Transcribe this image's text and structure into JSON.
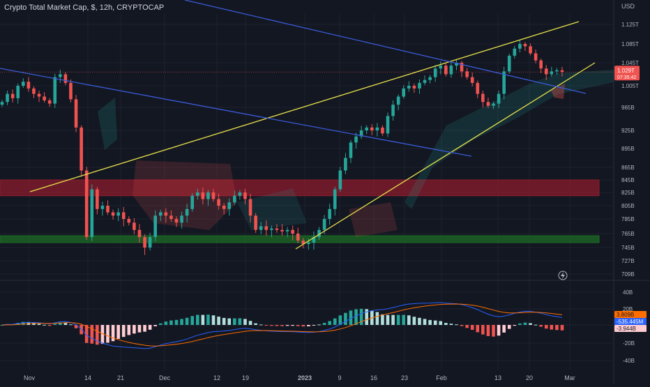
{
  "header": {
    "title": "Crypto Total Market Cap, $, 12h, CRYPTOCAP"
  },
  "price_axis": {
    "unit_label": "USD",
    "ticks": [
      "1.125T",
      "1.085T",
      "1.045T",
      "1.005T",
      "965B",
      "925B",
      "895B",
      "865B",
      "845B",
      "825B",
      "805B",
      "785B",
      "765B",
      "745B",
      "727B",
      "709B"
    ],
    "last_price": "1.029T",
    "countdown": "07:35:42"
  },
  "macd_axis": {
    "ticks": [
      "40B",
      "20B",
      "-20B",
      "-40B"
    ],
    "badges": [
      "3.809B",
      "-535.445M",
      "-3.944B"
    ]
  },
  "time_axis": {
    "labels": [
      "Nov",
      "14",
      "21",
      "Dec",
      "12",
      "19",
      "2023",
      "9",
      "16",
      "23",
      "Feb",
      "13",
      "20",
      "Mar"
    ]
  },
  "colors": {
    "background": "#131722",
    "up_candle": "#26a69a",
    "down_candle": "#f05350",
    "trendline_yellow": "#e8e24a",
    "trendline_blue": "#3a5bd9",
    "resistance_zone": "#8b1c2c",
    "support_zone": "#1e6b25",
    "macd_line": "#2962ff",
    "signal_line": "#ff6d00"
  },
  "icons": {
    "flash": "lightning-bolt-icon"
  },
  "chart_data": [
    {
      "type": "candlestick",
      "title": "Crypto Total Market Cap, $, 12h, CRYPTOCAP",
      "ylabel": "USD",
      "ylim": [
        "709B",
        "1.125T"
      ],
      "x_range": [
        "2022-10-25",
        "2023-03-01"
      ],
      "closes_usd_billion": [
        975,
        990,
        982,
        1005,
        1012,
        1000,
        990,
        985,
        978,
        972,
        1020,
        1025,
        1010,
        980,
        930,
        860,
        760,
        830,
        800,
        805,
        795,
        790,
        795,
        785,
        780,
        770,
        760,
        745,
        760,
        790,
        795,
        790,
        785,
        780,
        790,
        800,
        820,
        825,
        815,
        825,
        815,
        805,
        800,
        810,
        820,
        825,
        815,
        790,
        770,
        775,
        770,
        772,
        770,
        768,
        770,
        765,
        755,
        750,
        752,
        760,
        770,
        785,
        800,
        830,
        860,
        880,
        905,
        915,
        925,
        930,
        925,
        930,
        920,
        950,
        970,
        985,
        1000,
        1005,
        1000,
        1010,
        1015,
        1020,
        1035,
        1040,
        1025,
        1040,
        1045,
        1030,
        1020,
        1010,
        990,
        975,
        968,
        972,
        990,
        1030,
        1060,
        1075,
        1085,
        1080,
        1065,
        1050,
        1035,
        1025,
        1030,
        1032,
        1029
      ],
      "annotations": [
        {
          "type": "trendline",
          "color": "yellow",
          "label": "rising wedge upper"
        },
        {
          "type": "trendline",
          "color": "yellow",
          "label": "rising wedge lower"
        },
        {
          "type": "trendline",
          "color": "blue",
          "label": "descending resistance"
        },
        {
          "type": "trendline",
          "color": "blue",
          "label": "descending resistance 2"
        },
        {
          "type": "zone",
          "color": "red",
          "range": [
            "820B",
            "845B"
          ]
        },
        {
          "type": "zone",
          "color": "green",
          "range": [
            "752B",
            "762B"
          ]
        }
      ],
      "overlay": "ichimoku cloud"
    },
    {
      "type": "bar",
      "title": "MACD",
      "ylim": [
        "-40B",
        "40B"
      ],
      "series": [
        {
          "name": "histogram"
        },
        {
          "name": "macd"
        },
        {
          "name": "signal"
        }
      ]
    }
  ]
}
